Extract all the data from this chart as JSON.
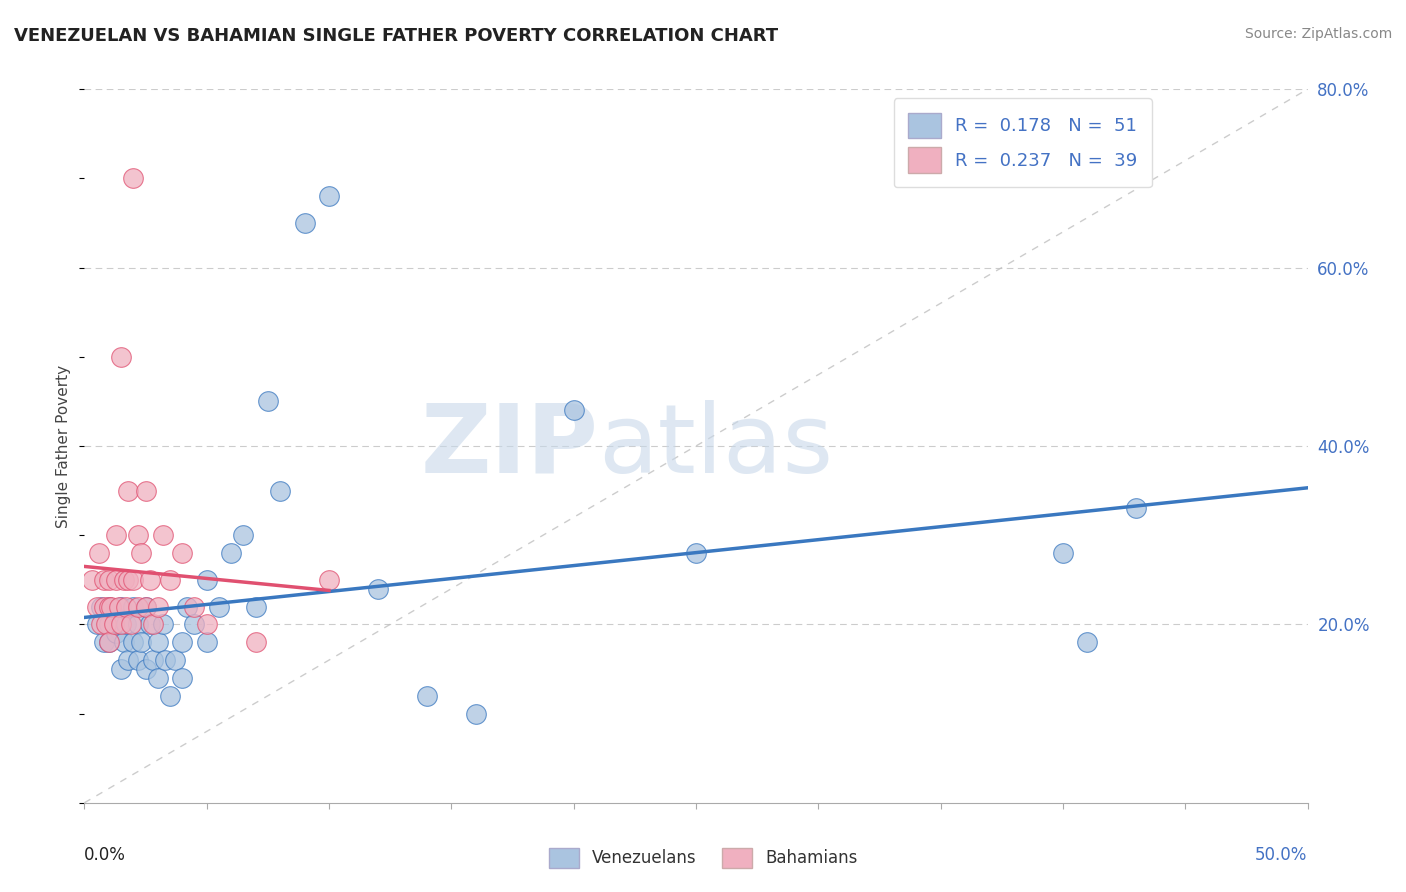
{
  "title": "VENEZUELAN VS BAHAMIAN SINGLE FATHER POVERTY CORRELATION CHART",
  "source": "Source: ZipAtlas.com",
  "ylabel": "Single Father Poverty",
  "xlim": [
    0,
    0.5
  ],
  "ylim": [
    0,
    0.8
  ],
  "R_venezuelan": 0.178,
  "N_venezuelan": 51,
  "R_bahamian": 0.237,
  "N_bahamian": 39,
  "color_venezuelan": "#aac4e0",
  "color_bahamian": "#f0b0c0",
  "color_venezuelan_line": "#3a78c0",
  "color_bahamian_line": "#e05070",
  "legend_venezuelan": "Venezuelans",
  "legend_bahamian": "Bahamians",
  "watermark_zip": "ZIP",
  "watermark_atlas": "atlas",
  "venezuelan_x": [
    0.005,
    0.007,
    0.008,
    0.01,
    0.01,
    0.01,
    0.012,
    0.013,
    0.014,
    0.015,
    0.015,
    0.016,
    0.017,
    0.018,
    0.02,
    0.02,
    0.022,
    0.022,
    0.023,
    0.025,
    0.025,
    0.027,
    0.028,
    0.03,
    0.03,
    0.032,
    0.033,
    0.035,
    0.037,
    0.04,
    0.04,
    0.042,
    0.045,
    0.05,
    0.05,
    0.055,
    0.06,
    0.065,
    0.07,
    0.075,
    0.08,
    0.09,
    0.1,
    0.12,
    0.14,
    0.16,
    0.2,
    0.25,
    0.4,
    0.41,
    0.43
  ],
  "venezuelan_y": [
    0.2,
    0.22,
    0.18,
    0.2,
    0.22,
    0.18,
    0.21,
    0.19,
    0.2,
    0.22,
    0.15,
    0.18,
    0.2,
    0.16,
    0.22,
    0.18,
    0.2,
    0.16,
    0.18,
    0.22,
    0.15,
    0.2,
    0.16,
    0.18,
    0.14,
    0.2,
    0.16,
    0.12,
    0.16,
    0.18,
    0.14,
    0.22,
    0.2,
    0.18,
    0.25,
    0.22,
    0.28,
    0.3,
    0.22,
    0.45,
    0.35,
    0.65,
    0.68,
    0.24,
    0.12,
    0.1,
    0.44,
    0.28,
    0.28,
    0.18,
    0.33
  ],
  "bahamian_x": [
    0.003,
    0.005,
    0.006,
    0.007,
    0.008,
    0.008,
    0.009,
    0.01,
    0.01,
    0.01,
    0.011,
    0.012,
    0.013,
    0.013,
    0.014,
    0.015,
    0.015,
    0.016,
    0.017,
    0.018,
    0.018,
    0.019,
    0.02,
    0.02,
    0.022,
    0.022,
    0.023,
    0.025,
    0.025,
    0.027,
    0.028,
    0.03,
    0.032,
    0.035,
    0.04,
    0.045,
    0.05,
    0.07,
    0.1
  ],
  "bahamian_y": [
    0.25,
    0.22,
    0.28,
    0.2,
    0.22,
    0.25,
    0.2,
    0.22,
    0.18,
    0.25,
    0.22,
    0.2,
    0.25,
    0.3,
    0.22,
    0.2,
    0.5,
    0.25,
    0.22,
    0.35,
    0.25,
    0.2,
    0.7,
    0.25,
    0.22,
    0.3,
    0.28,
    0.22,
    0.35,
    0.25,
    0.2,
    0.22,
    0.3,
    0.25,
    0.28,
    0.22,
    0.2,
    0.18,
    0.25
  ]
}
